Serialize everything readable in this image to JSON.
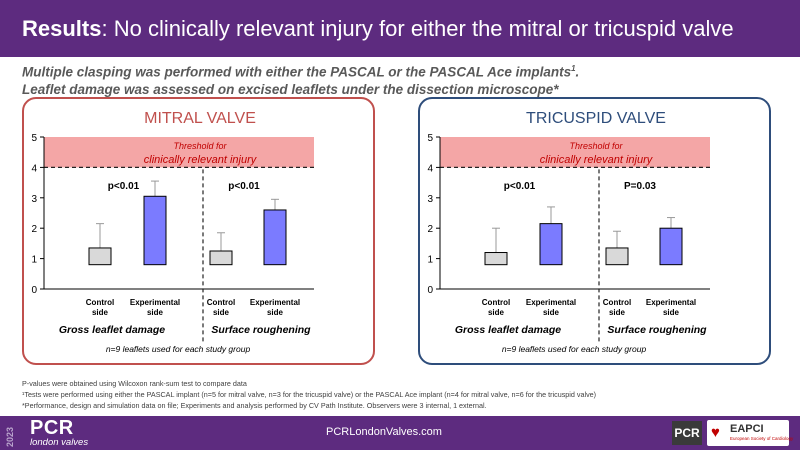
{
  "header": {
    "title_bold": "Results",
    "title_rest": ": No clinically relevant injury for either the mitral or tricuspid valve"
  },
  "subtitle": {
    "line1": "Multiple clasping was performed with either the PASCAL or the PASCAL Ace implants",
    "line1_sup": "1",
    "line1_end": ".",
    "line2": "Leaflet damage was assessed on excised leaflets under the dissection microscope*"
  },
  "colors": {
    "header": "#5d2b7f",
    "mitral": "#c0504d",
    "tricuspid": "#2e4d7b",
    "threshold_fill": "#f4a6a6",
    "threshold_text": "#c00000",
    "control_bar": "#d9d9d9",
    "experimental_bar": "#7b7bff"
  },
  "chart_data": [
    {
      "type": "bar",
      "title": "MITRAL VALVE",
      "ylim": [
        0,
        5
      ],
      "yticks": [
        "0",
        "1",
        "2",
        "3",
        "4",
        "5"
      ],
      "threshold": {
        "label_line1": "Threshold for",
        "label_line2": "clinically relevant injury",
        "from": 4,
        "to": 5
      },
      "groups": [
        {
          "label": "Gross leaflet damage",
          "p_value": "p<0.01",
          "bars": [
            {
              "category": "Control side",
              "value": 1.35,
              "error": 2.15
            },
            {
              "category": "Experimental side",
              "value": 3.05,
              "error": 3.55
            }
          ]
        },
        {
          "label": "Surface roughening",
          "p_value": "p<0.01",
          "bars": [
            {
              "category": "Control side",
              "value": 1.25,
              "error": 1.85
            },
            {
              "category": "Experimental side",
              "value": 2.6,
              "error": 2.95
            }
          ]
        }
      ],
      "note": "n=9 leaflets used for each study group"
    },
    {
      "type": "bar",
      "title": "TRICUSPID VALVE",
      "ylim": [
        0,
        5
      ],
      "yticks": [
        "0",
        "1",
        "2",
        "3",
        "4",
        "5"
      ],
      "threshold": {
        "label_line1": "Threshold for",
        "label_line2": "clinically relevant injury",
        "from": 4,
        "to": 5
      },
      "groups": [
        {
          "label": "Gross leaflet damage",
          "p_value": "p<0.01",
          "bars": [
            {
              "category": "Control side",
              "value": 1.2,
              "error": 2.0
            },
            {
              "category": "Experimental side",
              "value": 2.15,
              "error": 2.7
            }
          ]
        },
        {
          "label": "Surface roughening",
          "p_value": "P=0.03",
          "bars": [
            {
              "category": "Control side",
              "value": 1.35,
              "error": 1.9
            },
            {
              "category": "Experimental side",
              "value": 2.0,
              "error": 2.35
            }
          ]
        }
      ],
      "note": "n=9 leaflets used for each study group"
    }
  ],
  "footnotes": {
    "line1": "P-values were obtained using Wilcoxon rank-sum test to compare data",
    "line2": "¹Tests were performed using either the PASCAL implant (n=5 for mitral valve, n=3 for the tricuspid valve) or the PASCAL Ace implant (n=4 for mitral valve, n=6 for the tricuspid valve)",
    "line3": "*Performance, design and simulation data on file; Experiments and analysis performed by CV Path Institute. Observers were 3 internal, 1 external."
  },
  "footer": {
    "year": "2023",
    "brand": "PCR",
    "brand_sub": "london valves",
    "url": "PCRLondonValves.com",
    "pcr_logo": "PCR",
    "eapci": "EAPCI",
    "eapci_sub": "European Society of Cardiology"
  }
}
